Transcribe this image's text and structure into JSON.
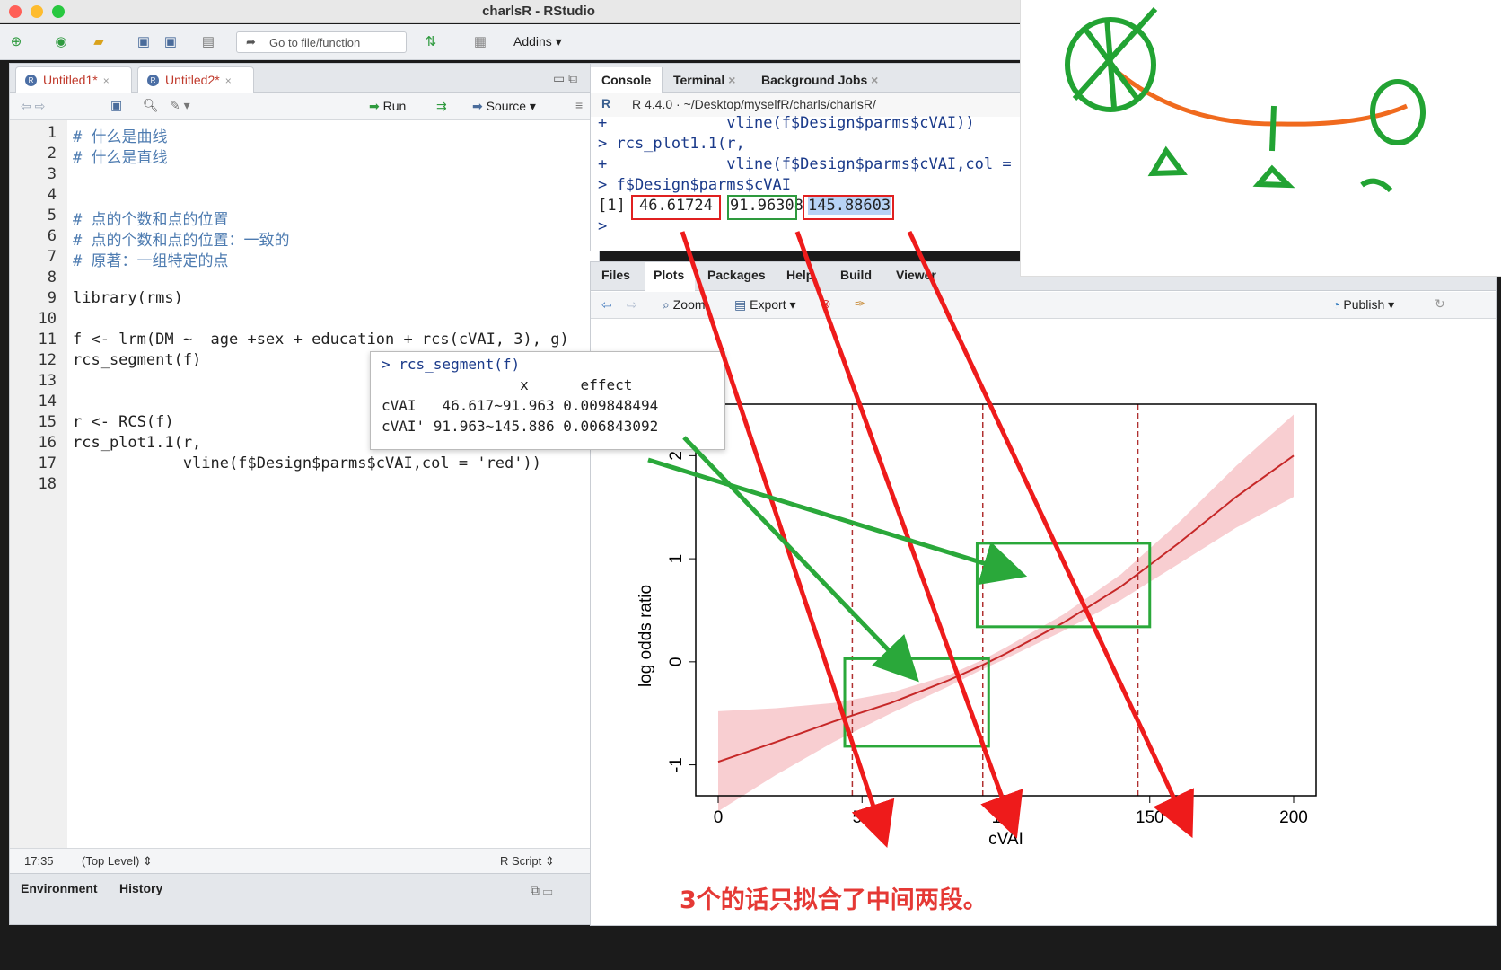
{
  "window": {
    "title": "charlsR - RStudio"
  },
  "toolbar": {
    "goto_placeholder": "Go to file/function",
    "addins": "Addins"
  },
  "source": {
    "tabs": [
      {
        "label": "Untitled1*"
      },
      {
        "label": "Untitled2*"
      }
    ],
    "run": "Run",
    "source": "Source",
    "lines": [
      "# 什么是曲线",
      "# 什么是直线",
      "",
      "",
      "# 点的个数和点的位置",
      "# 点的个数和点的位置：一致的",
      "# 原著：一组特定的点",
      "",
      "library(rms)",
      "",
      "f <- lrm(DM ~  age +sex + education + rcs(cVAI, 3), g)",
      "rcs_segment(f)",
      "",
      "",
      "r <- RCS(f)",
      "rcs_plot1.1(r,",
      "            vline(f$Design$parms$cVAI,col = 'red'))",
      ""
    ],
    "line_numbers": [
      "1",
      "2",
      "3",
      "4",
      "5",
      "6",
      "7",
      "8",
      "9",
      "10",
      "11",
      "12",
      "13",
      "14",
      "15",
      "16",
      "17",
      "18"
    ],
    "status": {
      "position": "17:35",
      "scope": "(Top Level)",
      "type": "R Script"
    },
    "bottom_tabs": [
      "Environment",
      "History"
    ]
  },
  "popup": {
    "command": "> rcs_segment(f)",
    "header": "                x      effect",
    "row1": "cVAI   46.617~91.963 0.009848494",
    "row2": "cVAI' 91.963~145.886 0.006843092"
  },
  "console": {
    "tabs": [
      "Console",
      "Terminal",
      "Background Jobs"
    ],
    "path": "R 4.4.0 · ~/Desktop/myselfR/charls/charlsR/",
    "lines": [
      "+             vline(f$Design$parms$cVAI))",
      "> rcs_plot1.1(r,",
      "+             vline(f$Design$parms$cVAI,col = 'r",
      "> f$Design$parms$cVAI"
    ],
    "result_index": "[1]",
    "values": [
      "46.61724",
      "91.96308",
      "145.88603"
    ],
    "prompt": ">"
  },
  "plots": {
    "tabs": [
      "Files",
      "Plots",
      "Packages",
      "Help",
      "Build",
      "Viewer"
    ],
    "zoom": "Zoom",
    "export": "Export",
    "publish": "Publish"
  },
  "chart_data": {
    "type": "line",
    "xlabel": "cVAI",
    "ylabel": "log odds ratio",
    "xlim": [
      0,
      200
    ],
    "ylim": [
      -1.3,
      2.5
    ],
    "xticks": [
      0,
      50,
      100,
      150,
      200
    ],
    "yticks": [
      -1,
      0,
      1,
      2
    ],
    "knots": [
      46.61724,
      91.96308,
      145.88603
    ],
    "series": [
      {
        "x": [
          0,
          20,
          40,
          60,
          80,
          92,
          100,
          120,
          140,
          160,
          180,
          200
        ],
        "y": [
          -0.97,
          -0.78,
          -0.58,
          -0.4,
          -0.18,
          -0.03,
          0.08,
          0.38,
          0.73,
          1.15,
          1.6,
          2.0
        ],
        "lower": [
          -1.45,
          -1.1,
          -0.78,
          -0.5,
          -0.24,
          -0.07,
          0.03,
          0.3,
          0.6,
          0.95,
          1.3,
          1.6
        ],
        "upper": [
          -0.48,
          -0.45,
          -0.4,
          -0.3,
          -0.13,
          0.02,
          0.14,
          0.46,
          0.85,
          1.35,
          1.9,
          2.4
        ]
      }
    ],
    "colors": {
      "line": "#c62828",
      "band": "#f7c6c9",
      "knot": "#b03030"
    }
  },
  "caption": "3个的话只拟合了中间两段。"
}
